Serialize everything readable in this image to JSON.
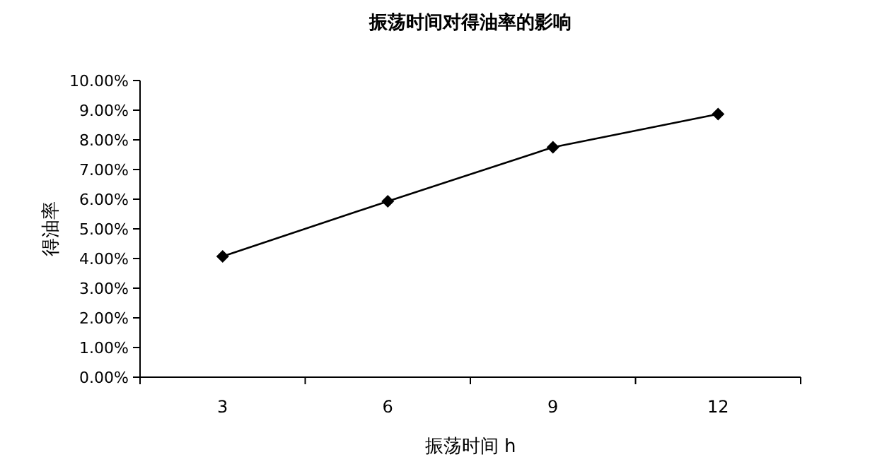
{
  "chart_data": {
    "type": "line",
    "title": "振荡时间对得油率的影响",
    "xlabel": "振荡时间 h",
    "ylabel": "得油率",
    "categories": [
      "3",
      "6",
      "9",
      "12"
    ],
    "series": [
      {
        "color": "#000000",
        "values": [
          4.07,
          5.93,
          7.75,
          8.87
        ]
      }
    ],
    "ylim": [
      0,
      10
    ],
    "yticks": [
      {
        "value": 0,
        "label": "0.00%"
      },
      {
        "value": 1,
        "label": "1.00%"
      },
      {
        "value": 2,
        "label": "2.00%"
      },
      {
        "value": 3,
        "label": "3.00%"
      },
      {
        "value": 4,
        "label": "4.00%"
      },
      {
        "value": 5,
        "label": "5.00%"
      },
      {
        "value": 6,
        "label": "6.00%"
      },
      {
        "value": 7,
        "label": "7.00%"
      },
      {
        "value": 8,
        "label": "8.00%"
      },
      {
        "value": 9,
        "label": "9.00%"
      },
      {
        "value": 10,
        "label": "10.00%"
      }
    ],
    "marker": "diamond",
    "line_style": "solid",
    "grid": false
  }
}
